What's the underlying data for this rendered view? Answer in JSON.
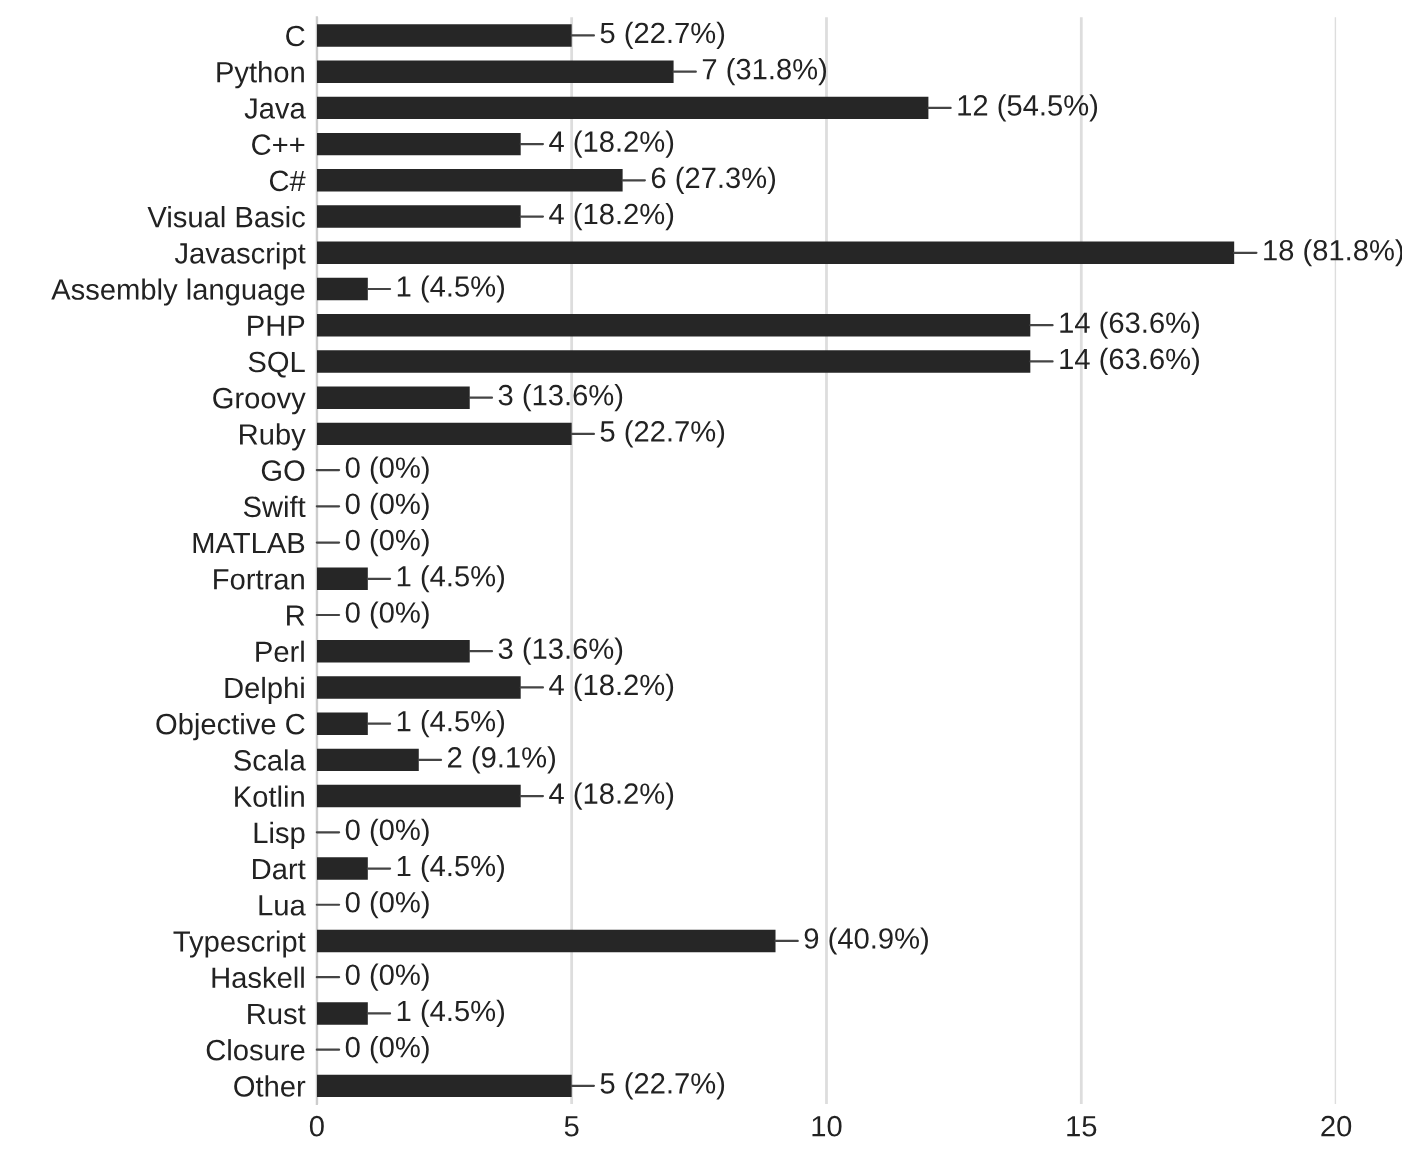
{
  "chart_data": {
    "type": "bar",
    "orientation": "horizontal",
    "categories": [
      "C",
      "Python",
      "Java",
      "C++",
      "C#",
      "Visual Basic",
      "Javascript",
      "Assembly language",
      "PHP",
      "SQL",
      "Groovy",
      "Ruby",
      "GO",
      "Swift",
      "MATLAB",
      "Fortran",
      "R",
      "Perl",
      "Delphi",
      "Objective C",
      "Scala",
      "Kotlin",
      "Lisp",
      "Dart",
      "Lua",
      "Typescript",
      "Haskell",
      "Rust",
      "Closure",
      "Other"
    ],
    "values": [
      5,
      7,
      12,
      4,
      6,
      4,
      18,
      1,
      14,
      14,
      3,
      5,
      0,
      0,
      0,
      1,
      0,
      3,
      4,
      1,
      2,
      4,
      0,
      1,
      0,
      9,
      0,
      1,
      0,
      5
    ],
    "value_labels": [
      "5 (22.7%)",
      "7 (31.8%)",
      "12 (54.5%)",
      "4 (18.2%)",
      "6 (27.3%)",
      "4 (18.2%)",
      "18 (81.8%)",
      "1 (4.5%)",
      "14 (63.6%)",
      "14 (63.6%)",
      "3 (13.6%)",
      "5 (22.7%)",
      "0 (0%)",
      "0 (0%)",
      "0 (0%)",
      "1 (4.5%)",
      "0 (0%)",
      "3 (13.6%)",
      "4 (18.2%)",
      "1 (4.5%)",
      "2 (9.1%)",
      "4 (18.2%)",
      "0 (0%)",
      "1 (4.5%)",
      "0 (0%)",
      "9 (40.9%)",
      "0 (0%)",
      "1 (4.5%)",
      "0 (0%)",
      "5 (22.7%)"
    ],
    "color": "#262626",
    "xlim": [
      0,
      20
    ],
    "xticks": [
      0,
      5,
      10,
      15,
      20
    ],
    "grid": "x",
    "legend": false
  }
}
